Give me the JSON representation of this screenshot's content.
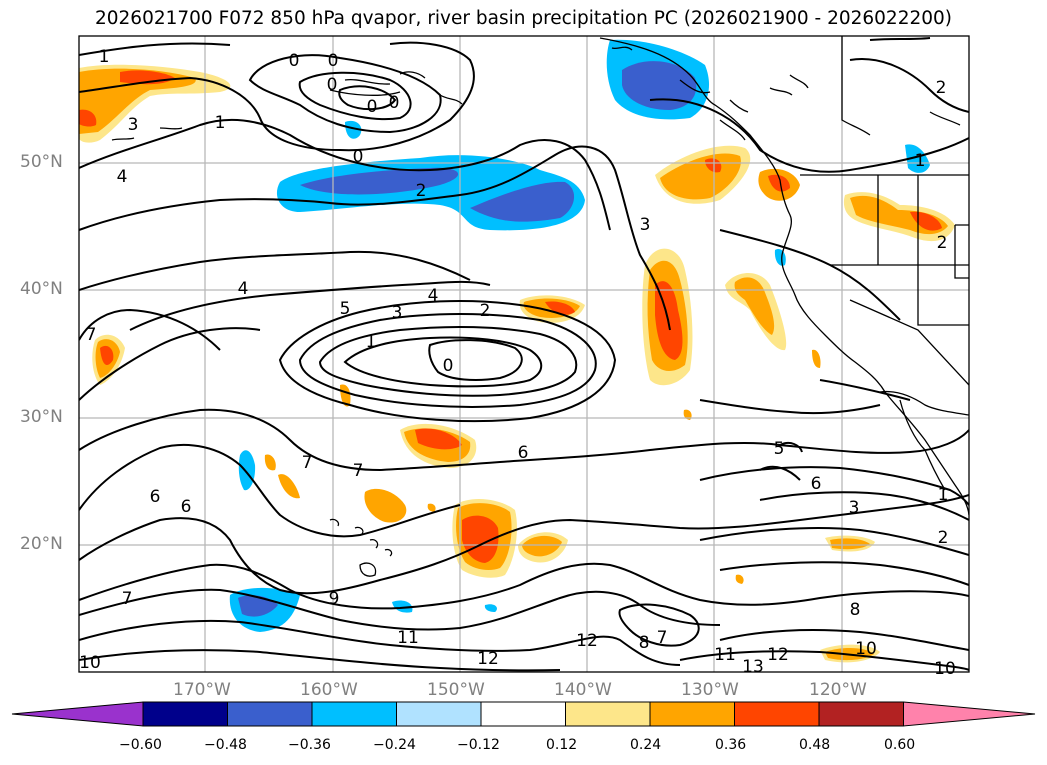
{
  "title": "2026021700 F072 850 hPa qvapor, river basin precipitation PC (2026021900 - 2026022200)",
  "lat_labels": [
    "50°N",
    "40°N",
    "30°N",
    "20°N"
  ],
  "lon_labels": [
    "170°W",
    "160°W",
    "150°W",
    "140°W",
    "130°W",
    "120°W"
  ],
  "contour_labels": [
    "1",
    "0",
    "0",
    "0",
    "0",
    "3",
    "4",
    "0",
    "2",
    "1",
    "2",
    "3",
    "4",
    "5",
    "3",
    "4",
    "2",
    "1",
    "0",
    "7",
    "6",
    "6",
    "7",
    "7",
    "6",
    "5",
    "6",
    "3",
    "1",
    "2",
    "9",
    "11",
    "12",
    "12",
    "7",
    "8",
    "11",
    "13",
    "12",
    "10",
    "10",
    "7",
    "2",
    "1",
    "0",
    "8",
    "10"
  ],
  "colorbar": {
    "ticks": [
      "−0.60",
      "−0.48",
      "−0.36",
      "−0.24",
      "−0.12",
      "0.12",
      "0.24",
      "0.36",
      "0.48",
      "0.60"
    ],
    "colors": [
      "#9a32cd",
      "#00008b",
      "#3a5fcd",
      "#00bfff",
      "#b0e2ff",
      "#ffffff",
      "#fde68a",
      "#ffa500",
      "#ff4500",
      "#b22222",
      "#ff82ab"
    ]
  }
}
